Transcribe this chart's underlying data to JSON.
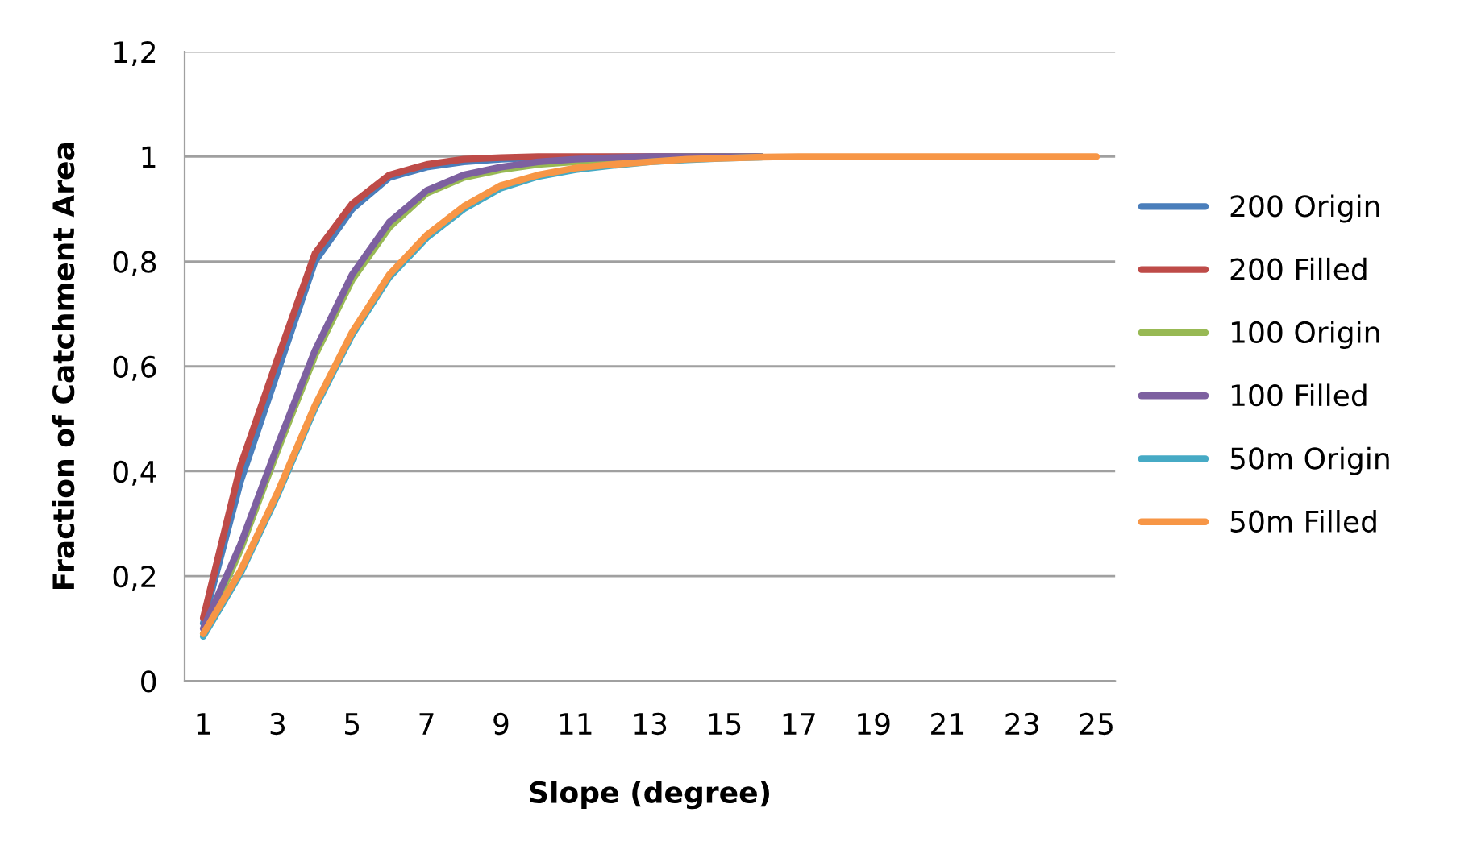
{
  "chart_data": {
    "type": "line",
    "xlabel": "Slope (degree)",
    "ylabel": "Fraction of Catchment Area",
    "categories": [
      "1",
      null,
      "3",
      null,
      "5",
      null,
      "7",
      null,
      "9",
      null,
      "11",
      null,
      "13",
      null,
      "15",
      null,
      "17",
      null,
      "19",
      null,
      "21",
      null,
      "23",
      null,
      "25"
    ],
    "ylim": [
      0,
      1.2
    ],
    "yticks": [
      0,
      {
        "value": 0.2,
        "label": "0,2"
      },
      {
        "value": 0.4,
        "label": "0,4"
      },
      {
        "value": 0.6,
        "label": "0,6"
      },
      {
        "value": 0.8,
        "label": "0,8"
      },
      1,
      {
        "value": 1.2,
        "label": "1,2"
      }
    ],
    "grid": "y",
    "legend": "right",
    "marker": "none",
    "line_style": "solid",
    "series": [
      {
        "name": "200 Origin",
        "color": "#4a7ebb",
        "values": [
          0.11,
          0.38,
          0.59,
          0.8,
          0.9,
          0.96,
          0.98,
          0.99,
          0.995,
          0.998,
          null,
          null,
          null,
          1,
          1,
          null,
          null,
          null,
          null,
          null,
          null,
          null,
          null,
          null,
          null
        ]
      },
      {
        "name": "200 Filled",
        "color": "#be4b48",
        "values": [
          0.12,
          0.41,
          0.615,
          0.815,
          0.91,
          0.965,
          0.985,
          0.995,
          0.998,
          1,
          1,
          1,
          1,
          1,
          1,
          1,
          null,
          null,
          null,
          null,
          null,
          null,
          null,
          null,
          null
        ]
      },
      {
        "name": "100 Origin",
        "color": "#98b954",
        "values": [
          0.09,
          0.25,
          0.44,
          0.62,
          0.765,
          0.865,
          0.93,
          0.96,
          0.975,
          0.985,
          0.99,
          0.995,
          0.998,
          1,
          1,
          1,
          null,
          null,
          null,
          null,
          null,
          null,
          null,
          null,
          null
        ]
      },
      {
        "name": "100 Filled",
        "color": "#7d60a0",
        "values": [
          0.1,
          0.26,
          0.45,
          0.63,
          0.775,
          0.875,
          0.935,
          0.965,
          0.98,
          0.99,
          0.995,
          0.998,
          1,
          1,
          1,
          1,
          null,
          null,
          null,
          null,
          null,
          null,
          null,
          null,
          null
        ]
      },
      {
        "name": "50m Origin",
        "color": "#46aac5",
        "values": [
          0.085,
          0.205,
          0.355,
          0.52,
          0.66,
          0.77,
          0.845,
          0.9,
          0.94,
          0.962,
          0.975,
          0.983,
          0.99,
          0.994,
          0.997,
          0.999,
          null,
          null,
          null,
          null,
          null,
          null,
          null,
          null,
          null
        ]
      },
      {
        "name": "50m Filled",
        "color": "#f79646",
        "values": [
          0.09,
          0.21,
          0.36,
          0.525,
          0.665,
          0.775,
          0.85,
          0.905,
          0.945,
          0.965,
          0.978,
          0.985,
          0.99,
          0.995,
          0.997,
          0.999,
          1,
          1,
          1,
          1,
          1,
          1,
          1,
          1,
          1
        ]
      }
    ]
  }
}
